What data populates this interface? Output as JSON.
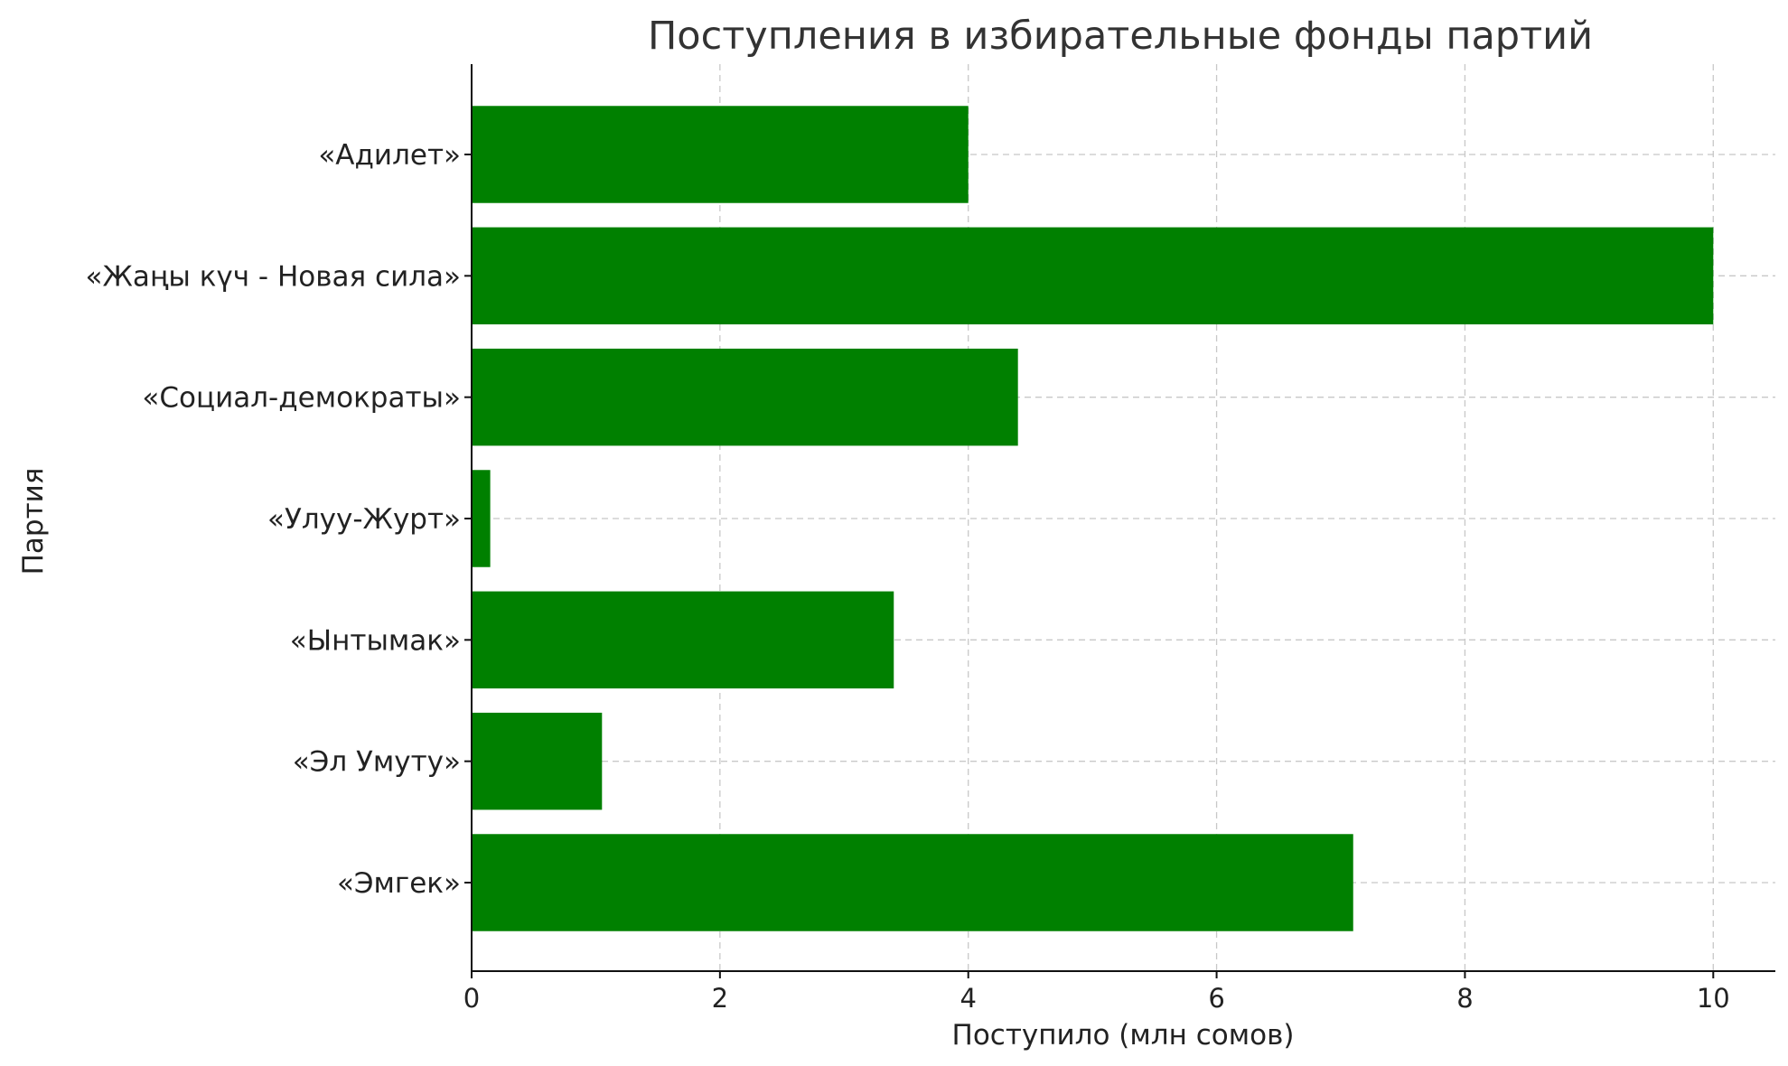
{
  "chart_data": {
    "type": "bar",
    "orientation": "horizontal",
    "title": "Поступления в избирательные фонды партий",
    "xlabel": "Поступило (млн сомов)",
    "ylabel": "Партия",
    "categories": [
      "«Адилет»",
      "«Жаңы күч - Новая сила»",
      "«Социал-демократы»",
      "«Улуу-Журт»",
      "«Ынтымак»",
      "«Эл Умуту»",
      "«Эмгек»"
    ],
    "values": [
      4.0,
      10.0,
      4.4,
      0.15,
      3.4,
      1.05,
      7.1
    ],
    "xlim": [
      0,
      10.5
    ],
    "xticks": [
      0,
      2,
      4,
      6,
      8,
      10
    ],
    "grid": true,
    "bar_color": "#008000",
    "legend": "none"
  }
}
